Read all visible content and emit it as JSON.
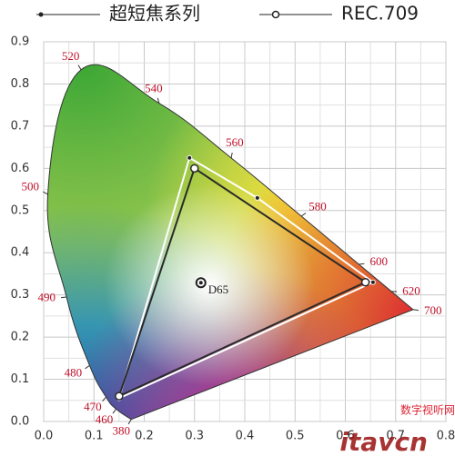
{
  "chart_data": {
    "type": "line",
    "closed": true,
    "xlim": [
      0,
      0.8
    ],
    "ylim": [
      0,
      0.9
    ],
    "xticks": [
      {
        "value": 0,
        "label": "0.0"
      },
      0.1,
      0.2,
      0.3,
      0.4,
      0.5,
      0.6,
      0.7,
      0.8
    ],
    "yticks": [
      {
        "value": 0,
        "label": "0.0"
      },
      0.1,
      0.2,
      0.3,
      0.4,
      0.5,
      0.6,
      0.7,
      0.8,
      0.9
    ],
    "grid": true,
    "legend": "top",
    "locus": {
      "wavelengths": [
        380,
        460,
        470,
        480,
        490,
        500,
        520,
        540,
        560,
        580,
        600,
        620,
        700
      ],
      "x": [
        0.1741,
        0.144,
        0.1241,
        0.0913,
        0.0454,
        0.0082,
        0.0743,
        0.2296,
        0.3731,
        0.5125,
        0.627,
        0.6915,
        0.7347
      ],
      "y": [
        0.005,
        0.0297,
        0.0578,
        0.1327,
        0.295,
        0.5384,
        0.8338,
        0.7543,
        0.6245,
        0.4866,
        0.3725,
        0.3083,
        0.2653
      ]
    },
    "white_point": {
      "label": "D65",
      "x": 0.3127,
      "y": 0.329
    },
    "series": [
      {
        "name": "超短焦系列",
        "color": "#ffffff",
        "x": [
          0.29,
          0.425,
          0.655,
          0.15
        ],
        "y": [
          0.625,
          0.53,
          0.33,
          0.055
        ]
      },
      {
        "name": "REC.709",
        "color": "#2a2a2a",
        "x": [
          0.3,
          0.64,
          0.15
        ],
        "y": [
          0.6,
          0.33,
          0.06
        ]
      }
    ],
    "watermark": [
      "itavcn",
      "数字视听网"
    ]
  }
}
